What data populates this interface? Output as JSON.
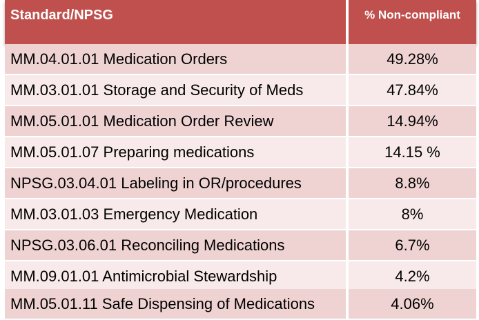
{
  "table": {
    "headers": {
      "standard": "Standard/NPSG",
      "percent": "% Non-compliant"
    },
    "rows": [
      {
        "standard": "MM.04.01.01 Medication Orders",
        "percent": "49.28%"
      },
      {
        "standard": "MM.03.01.01 Storage and Security of Meds",
        "percent": "47.84%"
      },
      {
        "standard": "MM.05.01.01 Medication Order Review",
        "percent": "14.94%"
      },
      {
        "standard": "MM.05.01.07  Preparing medications",
        "percent": "14.15 %"
      },
      {
        "standard": "NPSG.03.04.01 Labeling in OR/procedures",
        "percent": "8.8%"
      },
      {
        "standard": "MM.03.01.03 Emergency Medication",
        "percent": "8%"
      },
      {
        "standard": "NPSG.03.06.01 Reconciling Medications",
        "percent": "6.7%"
      },
      {
        "standard": "MM.09.01.01  Antimicrobial Stewardship",
        "percent": "4.2%"
      },
      {
        "standard": "MM.05.01.11  Safe Dispensing of Medications",
        "percent": "4.06%"
      }
    ]
  },
  "colors": {
    "header_bg": "#c0504d",
    "row_odd": "#efd3d2",
    "row_even": "#f8eaea"
  }
}
